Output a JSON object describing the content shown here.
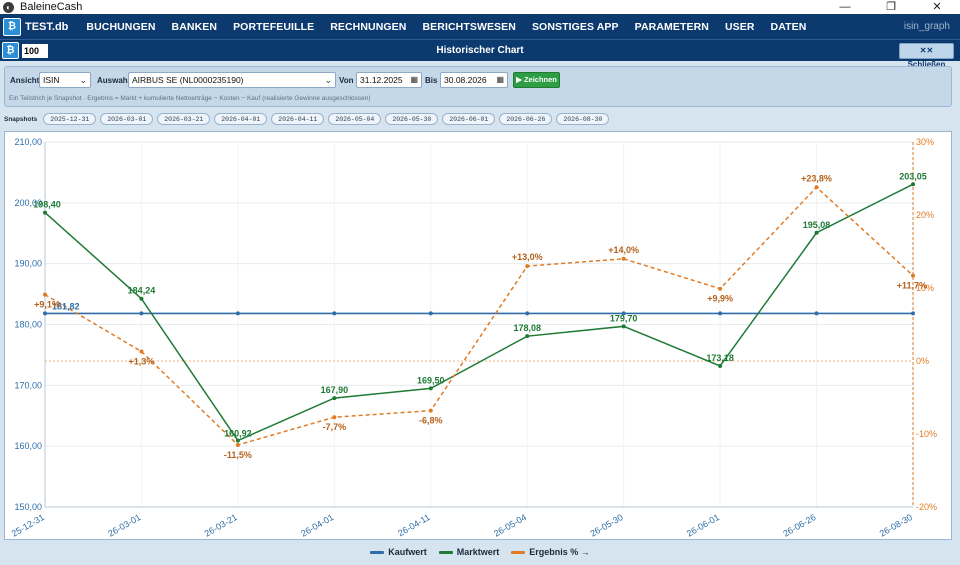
{
  "window": {
    "title": "BaleineCash",
    "icon": "app-icon",
    "minimize": "—",
    "maximize": "❐",
    "close": "✕"
  },
  "menubar": {
    "db": "TEST.db",
    "items": [
      "BUCHUNGEN",
      "BANKEN",
      "PORTEFEUILLE",
      "RECHNUNGEN",
      "BERICHTSWESEN",
      "SONSTIGES APP",
      "PARAMETERN",
      "USER",
      "DATEN"
    ],
    "right_label": "isin_graph"
  },
  "subbar": {
    "number_value": "100",
    "heading": "Historischer Chart",
    "close_label": "✕✕ Schließen"
  },
  "filter": {
    "ansicht_label": "Ansicht",
    "ansicht_value": "ISIN",
    "auswahl_label": "Auswahl",
    "auswahl_value": "AIRBUS SE (NL0000235190)",
    "von_label": "Von",
    "von_value": "31.12.2025",
    "bis_label": "Bis",
    "bis_value": "30.08.2026",
    "draw_label": "▶ Zeichnen",
    "hint": "Ein Teilstrich je Snapshot · Ergebnis = Markt + kumulierte Nettoerträge − Kosten − Kauf (realisierte Gewinne ausgeschlossen)"
  },
  "snapshots": {
    "label": "Snapshots",
    "dates": [
      "2025-12-31",
      "2026-03-01",
      "2026-03-21",
      "2026-04-01",
      "2026-04-11",
      "2026-05-04",
      "2026-05-30",
      "2026-06-01",
      "2026-06-26",
      "2026-08-30"
    ]
  },
  "colors": {
    "kaufwert": "#2f6ea8",
    "marktwert": "#1e7a35",
    "ergebnis": "#e07b24"
  },
  "chart_data": {
    "type": "line",
    "categories": [
      "25-12-31",
      "26-03-01",
      "26-03-21",
      "26-04-01",
      "26-04-11",
      "26-05-04",
      "26-05-30",
      "26-06-01",
      "26-06-26",
      "26-08-30"
    ],
    "y_left": {
      "ylim": [
        150,
        210
      ],
      "ticks": [
        "150,00",
        "160,00",
        "170,00",
        "180,00",
        "190,00",
        "200,00",
        "210,00"
      ]
    },
    "y_right": {
      "ylim": [
        -20,
        30
      ],
      "ticks": [
        "-20%",
        "-10%",
        "0%",
        "10%",
        "20%",
        "30%"
      ]
    },
    "series": [
      {
        "name": "Kaufwert",
        "axis": "left",
        "values": [
          181.82,
          181.82,
          181.82,
          181.82,
          181.82,
          181.82,
          181.82,
          181.82,
          181.82,
          181.82
        ],
        "labels": [
          "181,82"
        ]
      },
      {
        "name": "Marktwert",
        "axis": "left",
        "values": [
          198.4,
          184.24,
          160.92,
          167.9,
          169.5,
          178.08,
          179.7,
          173.18,
          195.08,
          203.05
        ],
        "labels": [
          "198,40",
          "184,24",
          "160,92",
          "167,90",
          "169,50",
          "178,08",
          "179,70",
          "173,18",
          "195,08",
          "203,05"
        ]
      },
      {
        "name": "Ergebnis % →",
        "axis": "right",
        "values": [
          9.1,
          1.3,
          -11.5,
          -7.7,
          -6.8,
          13.0,
          14.0,
          9.9,
          23.8,
          11.7
        ],
        "labels": [
          "+9,1%",
          "+1,3%",
          "-11,5%",
          "-7,7%",
          "-6,8%",
          "+13,0%",
          "+14,0%",
          "+9,9%",
          "+23,8%",
          "+11,7%"
        ]
      }
    ],
    "legend": [
      "Kaufwert",
      "Marktwert",
      "Ergebnis % →"
    ],
    "legend_position": "bottom"
  }
}
